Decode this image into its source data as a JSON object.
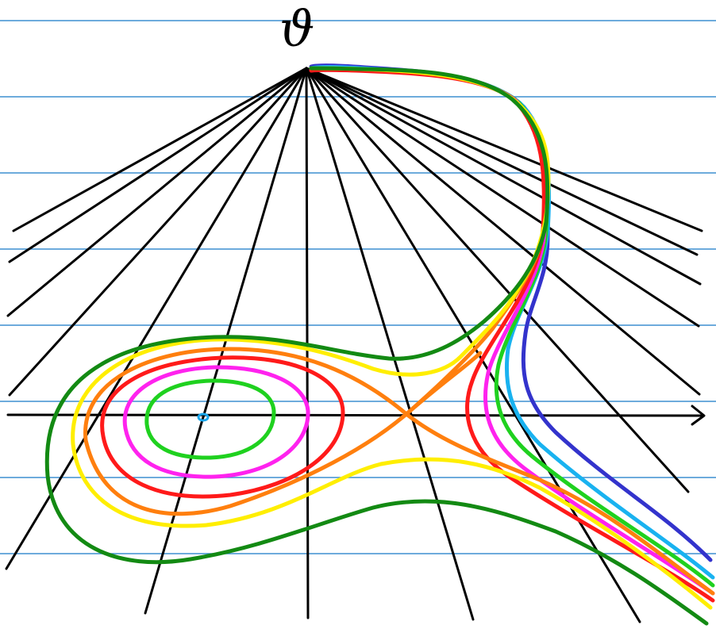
{
  "diagram": {
    "vanishing_point_label": "ϑ",
    "colors": {
      "ruled_line": "#3d8fd1",
      "ray": "#000000",
      "axis": "#000000",
      "label": "#000000",
      "center_dot": "#1aa7ec"
    },
    "curves": [
      {
        "name": "green-contour",
        "color": "#1fd11f"
      },
      {
        "name": "magenta-contour",
        "color": "#ff22ee"
      },
      {
        "name": "red-contour",
        "color": "#ff1a1a"
      },
      {
        "name": "orange-separatrix",
        "color": "#ff7f0e"
      },
      {
        "name": "yellow-contour",
        "color": "#ffee00"
      },
      {
        "name": "darkgreen-contour",
        "color": "#138a13"
      },
      {
        "name": "blue-tail",
        "color": "#3333cc"
      },
      {
        "name": "cyan-tail",
        "color": "#19b2f0"
      }
    ]
  }
}
